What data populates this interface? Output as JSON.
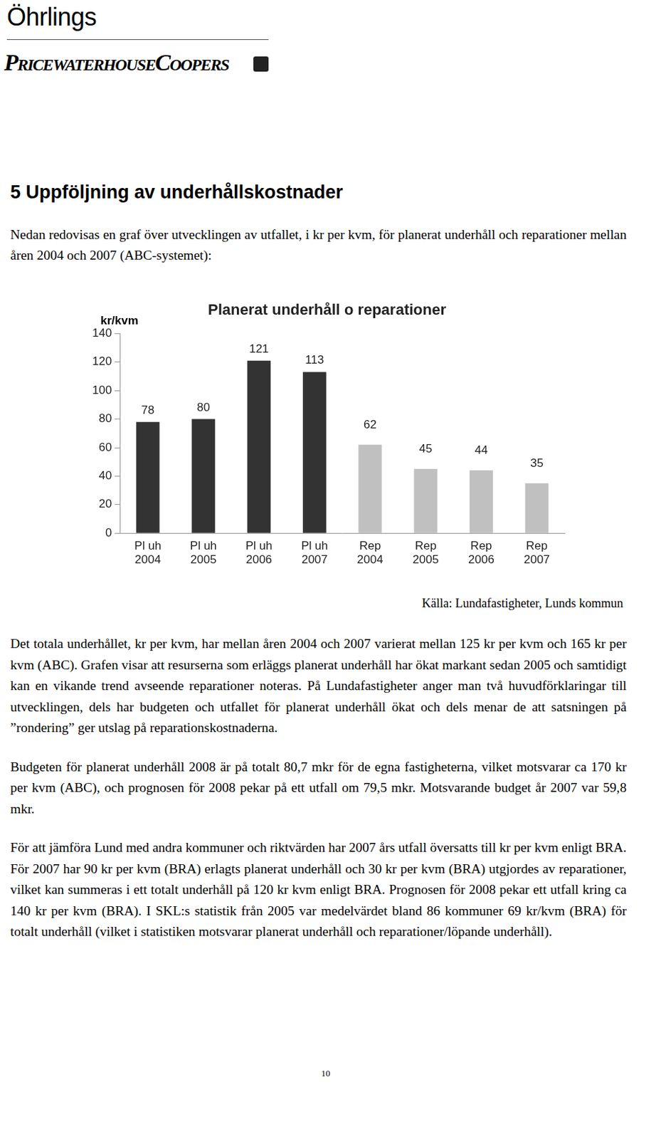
{
  "header": {
    "brand_top": "Öhrlings",
    "brand_bottom": "PricewaterhouseCoopers"
  },
  "heading": "5 Uppföljning av underhållskostnader",
  "intro": "Nedan redovisas en graf över utvecklingen av utfallet, i kr per kvm, för planerat underhåll och reparationer mellan åren 2004 och 2007 (ABC-systemet):",
  "chart_data": {
    "type": "bar",
    "title": "Planerat underhåll o reparationer",
    "y_label": "kr/kvm",
    "categories": [
      [
        "Pl uh",
        "2004"
      ],
      [
        "Pl uh",
        "2005"
      ],
      [
        "Pl uh",
        "2006"
      ],
      [
        "Pl uh",
        "2007"
      ],
      [
        "Rep",
        "2004"
      ],
      [
        "Rep",
        "2005"
      ],
      [
        "Rep",
        "2006"
      ],
      [
        "Rep",
        "2007"
      ]
    ],
    "values": [
      78,
      80,
      121,
      113,
      62,
      45,
      44,
      35
    ],
    "colors": [
      "#333333",
      "#333333",
      "#333333",
      "#333333",
      "#c0c0c0",
      "#c0c0c0",
      "#c0c0c0",
      "#c0c0c0"
    ],
    "ylim": [
      0,
      140
    ],
    "yticks": [
      0,
      20,
      40,
      60,
      80,
      100,
      120,
      140
    ],
    "grid": false,
    "data_labels": true
  },
  "source": "Källa: Lundafastigheter, Lunds kommun",
  "paragraphs": [
    "Det totala underhållet, kr per kvm, har mellan åren 2004 och 2007 varierat mellan 125 kr per kvm och 165 kr per kvm (ABC). Grafen visar att resurserna som erläggs planerat underhåll har ökat markant sedan 2005 och samtidigt kan en vikande trend avseende reparationer noteras. På Lundafastigheter anger man två huvudförklaringar till utvecklingen, dels har budgeten och utfallet för planerat underhåll ökat och dels menar de att satsningen på ”rondering” ger utslag på reparationskostnaderna.",
    "Budgeten för planerat underhåll 2008 är på totalt 80,7 mkr för de egna fastigheterna, vilket motsvarar ca 170 kr per kvm (ABC), och prognosen för 2008 pekar på ett utfall om 79,5 mkr. Motsvarande budget år 2007 var 59,8 mkr.",
    "För att jämföra Lund med andra kommuner och riktvärden har 2007 års utfall översatts till kr per kvm enligt BRA. För 2007 har 90 kr per kvm (BRA) erlagts planerat underhåll och 30 kr per kvm (BRA) utgjordes av reparationer, vilket kan summeras i ett totalt underhåll på 120 kr kvm enligt BRA. Prognosen för 2008 pekar ett utfall kring ca 140 kr per kvm (BRA). I SKL:s statistik från 2005 var medelvärdet bland 86 kommuner 69 kr/kvm (BRA) för totalt underhåll (vilket i statistiken motsvarar planerat underhåll och reparationer/löpande underhåll)."
  ],
  "page_number": "10"
}
